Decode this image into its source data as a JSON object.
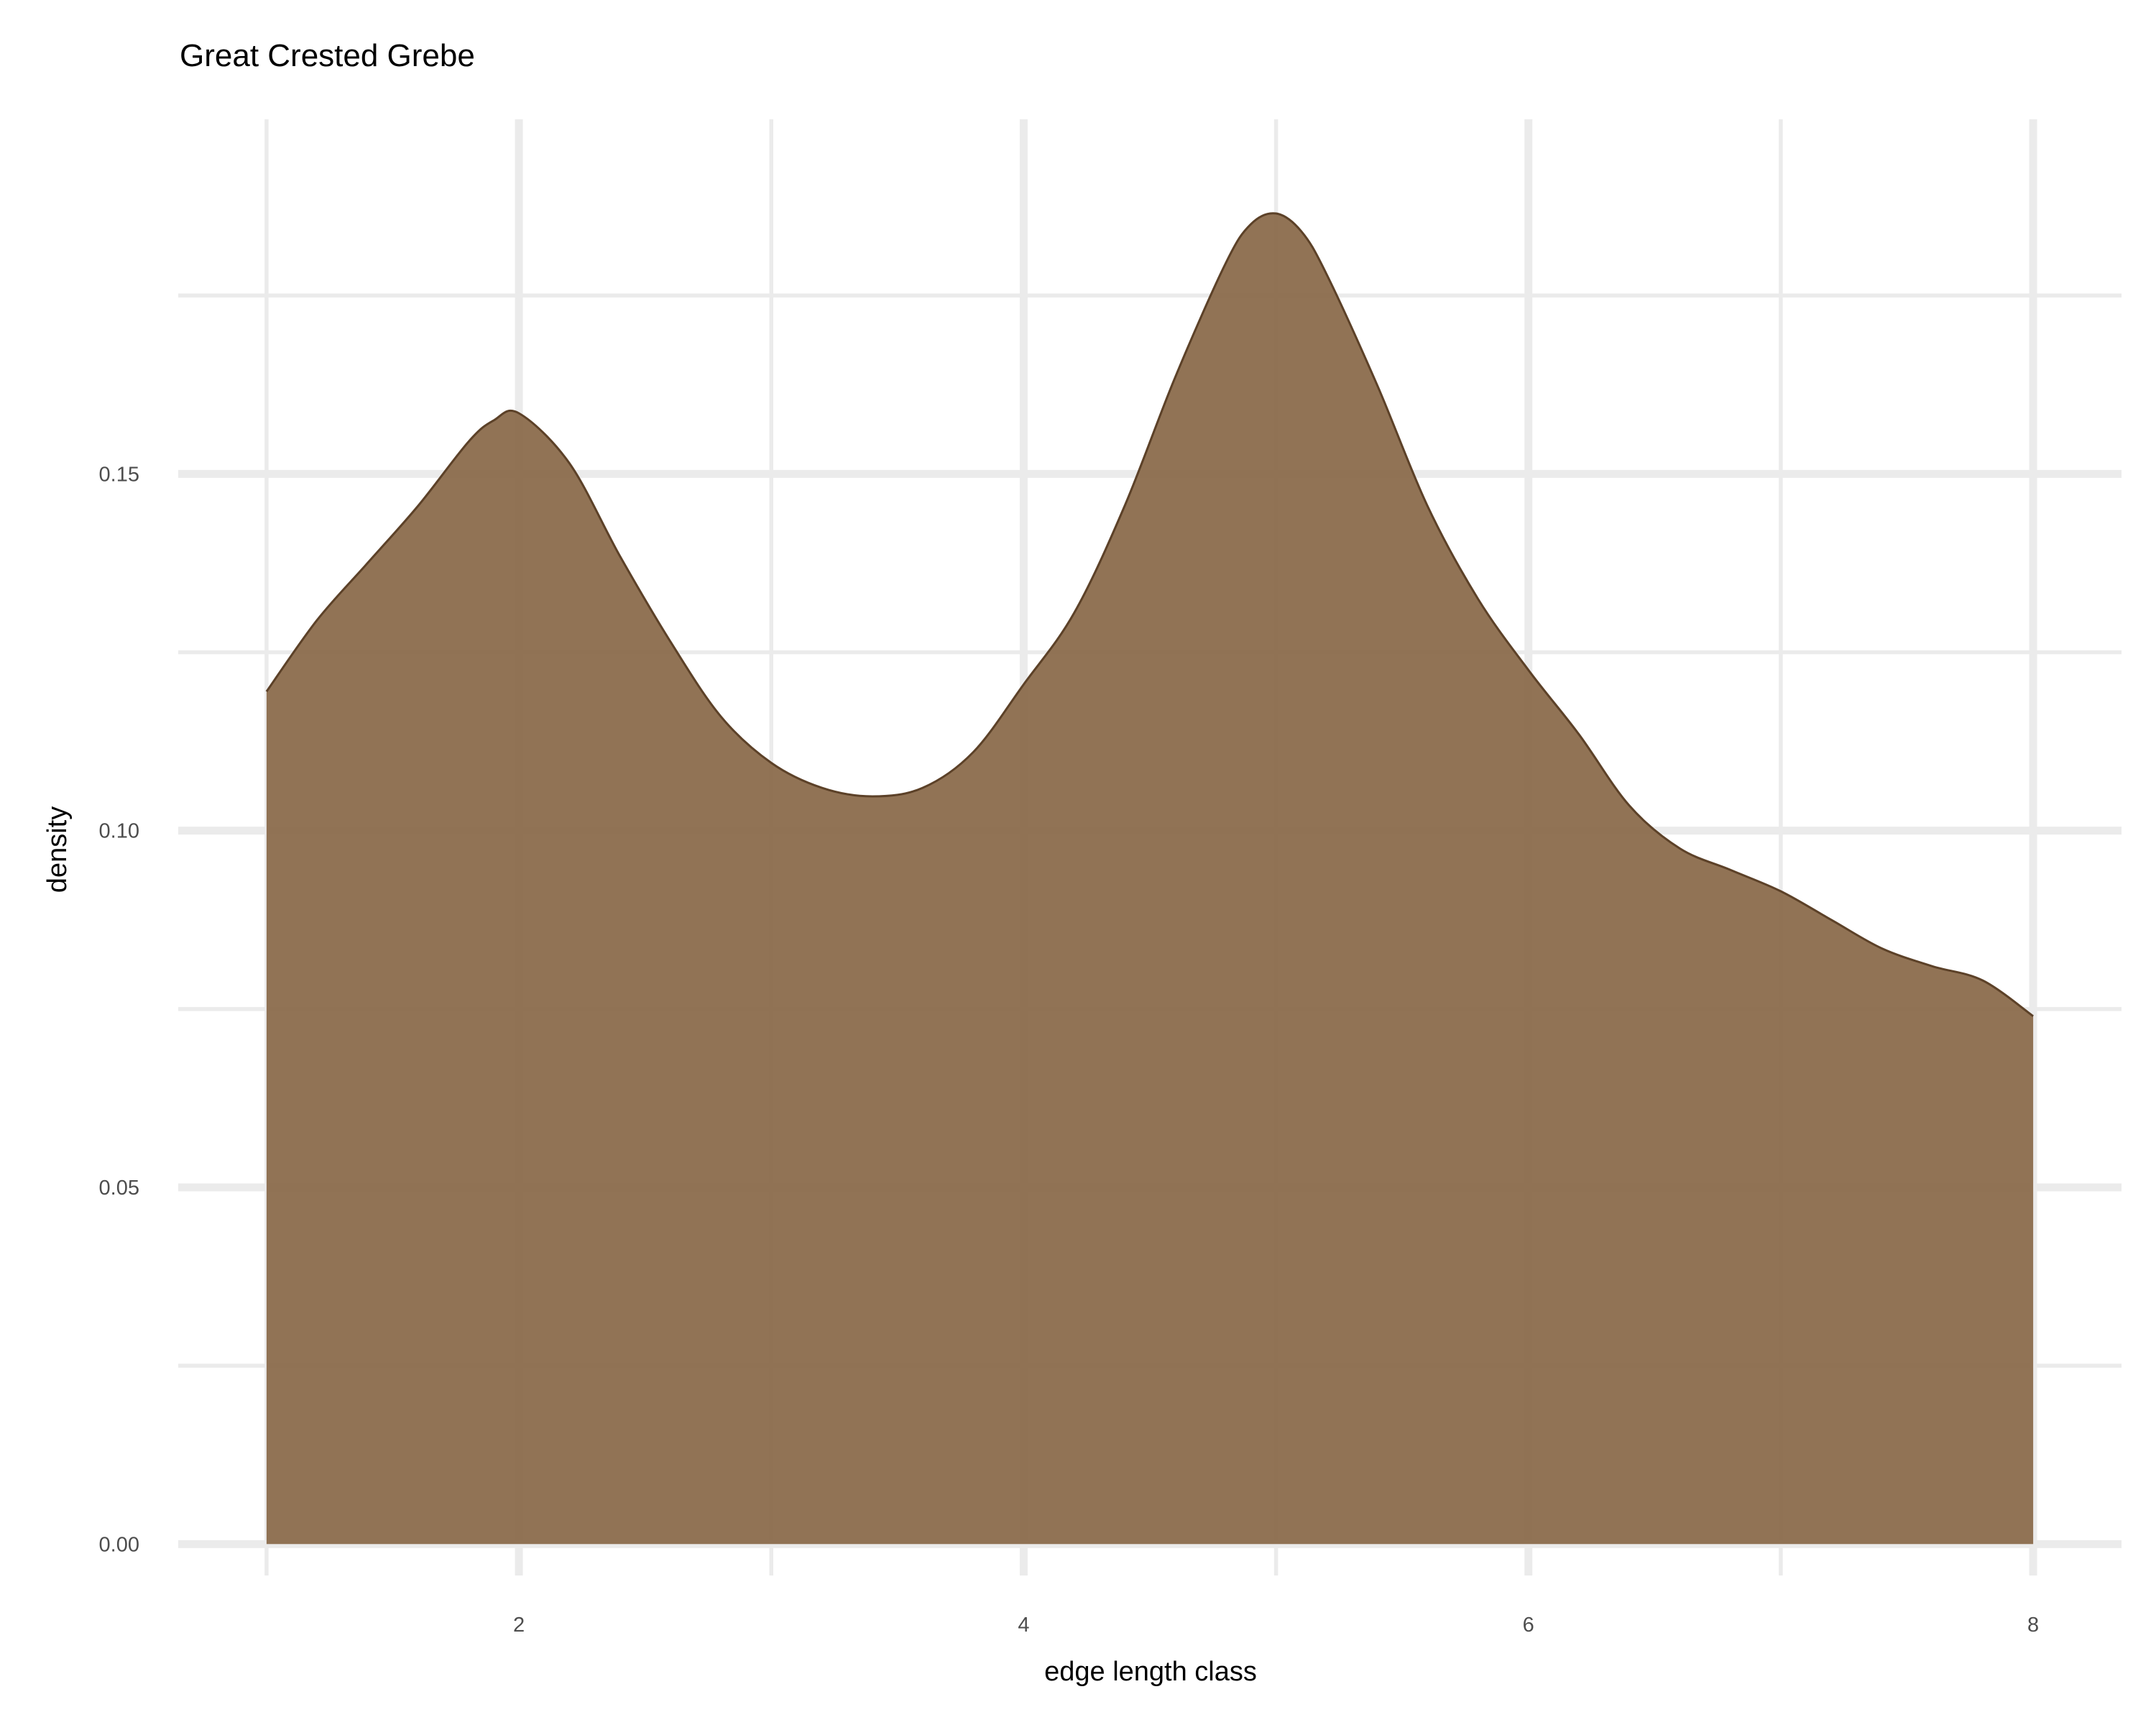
{
  "chart_data": {
    "type": "area",
    "title": "Great Crested Grebe",
    "xlabel": "edge length class",
    "ylabel": "density",
    "xlim": [
      0.65,
      8.35
    ],
    "ylim": [
      -0.0044,
      0.1997
    ],
    "x_ticks": [
      2,
      4,
      6,
      8
    ],
    "x_tick_labels": [
      "2",
      "4",
      "6",
      "8"
    ],
    "x_minor": [
      1,
      3,
      5,
      7
    ],
    "y_ticks": [
      0.0,
      0.05,
      0.1,
      0.15
    ],
    "y_tick_labels": [
      "0.00",
      "0.05",
      "0.10",
      "0.15"
    ],
    "y_minor": [
      0.025,
      0.075,
      0.125,
      0.175
    ],
    "grid": true,
    "colors": {
      "fill": "#8b6c4c",
      "stroke": "#5c4128",
      "grid": "#ebebeb"
    },
    "series": [
      {
        "x": [
          1.0,
          1.2,
          1.4,
          1.6,
          1.8,
          1.9,
          2.0,
          2.2,
          2.4,
          2.6,
          2.8,
          3.0,
          3.2,
          3.4,
          3.6,
          3.8,
          4.0,
          4.2,
          4.4,
          4.6,
          4.8,
          4.9,
          5.0,
          5.1,
          5.2,
          5.4,
          5.6,
          5.8,
          6.0,
          6.2,
          6.4,
          6.6,
          6.8,
          7.0,
          7.2,
          7.4,
          7.6,
          7.8,
          8.0
        ],
        "y": [
          0.1195,
          0.1295,
          0.1375,
          0.1455,
          0.1545,
          0.1575,
          0.1585,
          0.1515,
          0.1385,
          0.1265,
          0.116,
          0.1095,
          0.106,
          0.1048,
          0.106,
          0.111,
          0.1205,
          0.1305,
          0.1455,
          0.1635,
          0.1795,
          0.185,
          0.1865,
          0.184,
          0.178,
          0.1625,
          0.1455,
          0.1325,
          0.1225,
          0.1135,
          0.1035,
          0.0975,
          0.0945,
          0.0915,
          0.0875,
          0.0835,
          0.081,
          0.079,
          0.074
        ]
      }
    ]
  }
}
